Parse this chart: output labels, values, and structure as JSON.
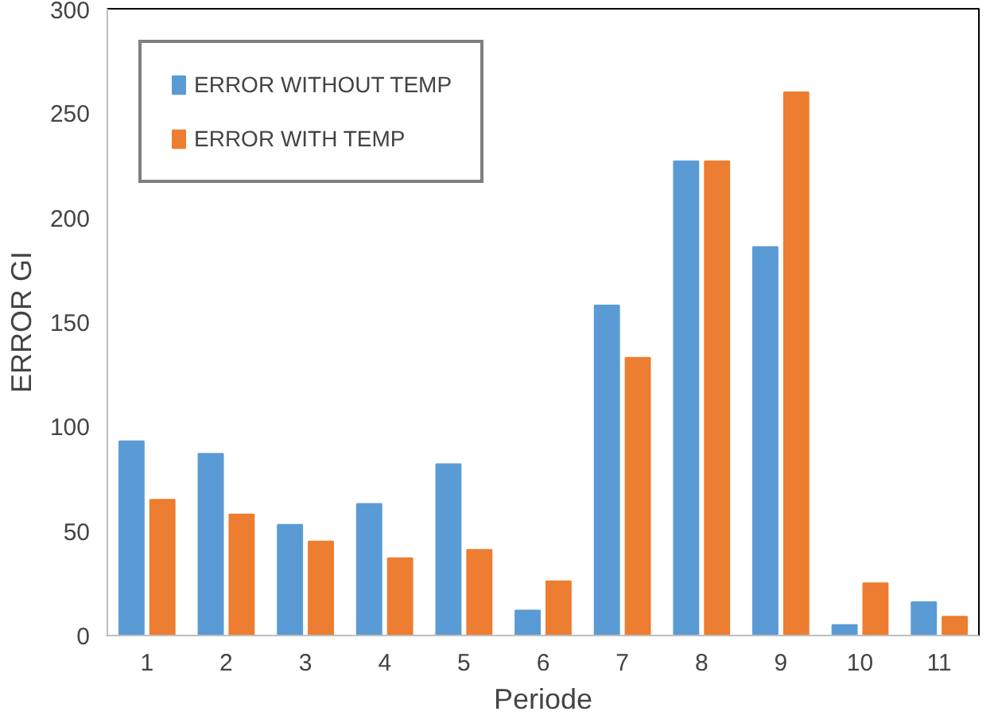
{
  "chart_data": {
    "type": "bar",
    "xlabel": "Periode",
    "ylabel": "ERROR GI",
    "categories": [
      "1",
      "2",
      "3",
      "4",
      "5",
      "6",
      "7",
      "8",
      "9",
      "10",
      "11"
    ],
    "series": [
      {
        "name": "ERROR WITHOUT TEMP",
        "color": "#5b9bd5",
        "values": [
          93,
          87,
          53,
          63,
          82,
          12,
          158,
          227,
          186,
          5,
          16
        ]
      },
      {
        "name": "ERROR WITH TEMP",
        "color": "#ed7d31",
        "values": [
          65,
          58,
          45,
          37,
          41,
          26,
          133,
          227,
          260,
          25,
          9
        ]
      }
    ],
    "ylim": [
      0,
      300
    ],
    "yticks": [
      0,
      50,
      100,
      150,
      200,
      250,
      300
    ],
    "grid": false,
    "legend": "top left"
  }
}
